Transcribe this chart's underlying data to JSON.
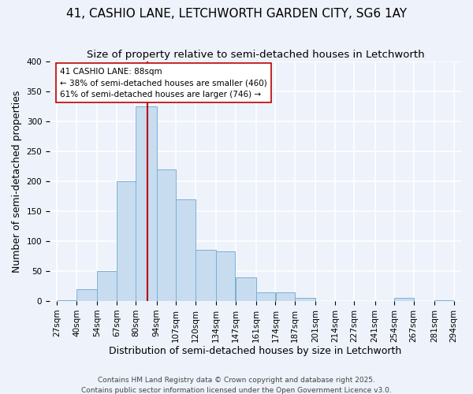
{
  "title": "41, CASHIO LANE, LETCHWORTH GARDEN CITY, SG6 1AY",
  "subtitle": "Size of property relative to semi-detached houses in Letchworth",
  "xlabel": "Distribution of semi-detached houses by size in Letchworth",
  "ylabel": "Number of semi-detached properties",
  "bar_color": "#c8dcf0",
  "bar_edge_color": "#7ab0d4",
  "background_color": "#eef2fa",
  "grid_color": "#ffffff",
  "property_line_x": 88,
  "property_line_color": "#bb0000",
  "annotation_title": "41 CASHIO LANE: 88sqm",
  "annotation_line1": "← 38% of semi-detached houses are smaller (460)",
  "annotation_line2": "61% of semi-detached houses are larger (746) →",
  "annotation_box_color": "#ffffff",
  "annotation_box_edge": "#bb0000",
  "bin_edges": [
    27,
    40,
    54,
    67,
    80,
    94,
    107,
    120,
    134,
    147,
    161,
    174,
    187,
    201,
    214,
    227,
    241,
    254,
    267,
    281,
    294
  ],
  "bin_labels": [
    "27sqm",
    "40sqm",
    "54sqm",
    "67sqm",
    "80sqm",
    "94sqm",
    "107sqm",
    "120sqm",
    "134sqm",
    "147sqm",
    "161sqm",
    "174sqm",
    "187sqm",
    "201sqm",
    "214sqm",
    "227sqm",
    "241sqm",
    "254sqm",
    "267sqm",
    "281sqm",
    "294sqm"
  ],
  "counts": [
    2,
    20,
    50,
    200,
    325,
    220,
    170,
    85,
    83,
    40,
    15,
    15,
    5,
    0,
    0,
    0,
    0,
    5,
    0,
    2
  ],
  "ylim": [
    0,
    400
  ],
  "yticks": [
    0,
    50,
    100,
    150,
    200,
    250,
    300,
    350,
    400
  ],
  "footer1": "Contains HM Land Registry data © Crown copyright and database right 2025.",
  "footer2": "Contains public sector information licensed under the Open Government Licence v3.0.",
  "title_fontsize": 11,
  "subtitle_fontsize": 9.5,
  "label_fontsize": 9,
  "tick_fontsize": 7.5,
  "footer_fontsize": 6.5
}
